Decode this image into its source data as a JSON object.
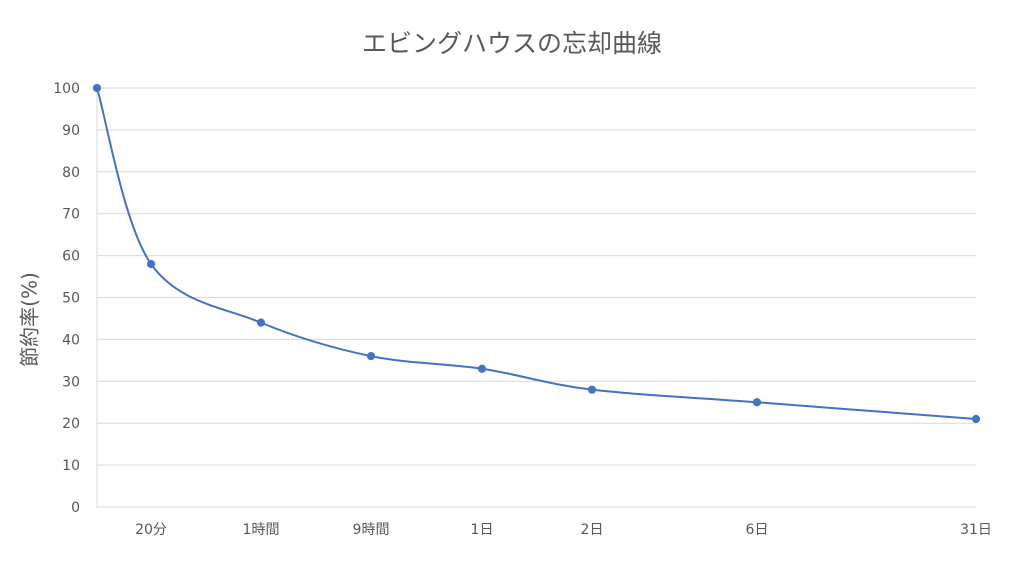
{
  "chart_data": {
    "type": "line",
    "title": "エビングハウスの忘却曲線",
    "xlabel": "",
    "ylabel": "節約率(%)",
    "ylim": [
      0,
      100
    ],
    "yticks": [
      0,
      10,
      20,
      30,
      40,
      50,
      60,
      70,
      80,
      90,
      100
    ],
    "grid": true,
    "x": [
      "",
      "20分",
      "1時間",
      "9時間",
      "1日",
      "2日",
      "6日",
      "31日"
    ],
    "series": [
      {
        "values": [
          100,
          58,
          44,
          36,
          33,
          28,
          25,
          21
        ]
      }
    ],
    "colors": {
      "line": "#4472C4",
      "grid": "#D9D9D9",
      "text": "#595959"
    }
  }
}
